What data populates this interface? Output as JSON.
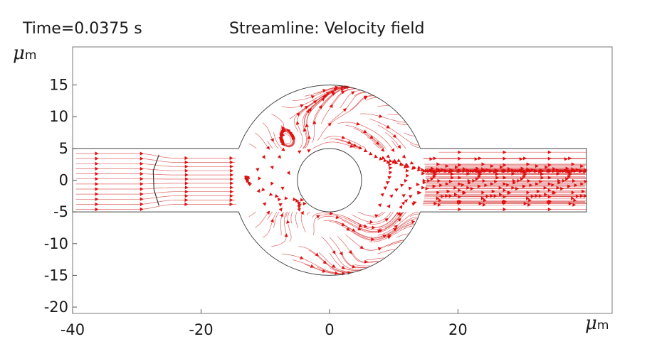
{
  "header": {
    "time_label": "Time=0.0375 s",
    "plot_title": "Streamline: Velocity field"
  },
  "chart_data": {
    "type": "streamline",
    "title": "Streamline: Velocity field",
    "annotation": "Time=0.0375 s",
    "xlabel_symbol": "μ",
    "xlabel_unit": "m",
    "ylabel_symbol": "μ",
    "ylabel_unit": "m",
    "xlim": [
      -40,
      44
    ],
    "ylim": [
      -21,
      21
    ],
    "xticks": [
      -40,
      -20,
      0,
      20
    ],
    "yticks": [
      15,
      10,
      5,
      0,
      -5,
      -10,
      -15,
      -20
    ],
    "grid": false,
    "geometry": {
      "channel": {
        "x": [
          -40,
          40
        ],
        "y": [
          -5,
          5
        ]
      },
      "outer_circle": {
        "center": [
          0,
          0
        ],
        "radius": 15
      },
      "inner_circle": {
        "center": [
          0,
          0
        ],
        "radius": 5
      },
      "valve_flap": {
        "x": -27,
        "y": [
          -4,
          4
        ]
      }
    },
    "colors": {
      "streamline": "#d94848",
      "arrow": "#e01010",
      "boundary": "#444444"
    }
  }
}
